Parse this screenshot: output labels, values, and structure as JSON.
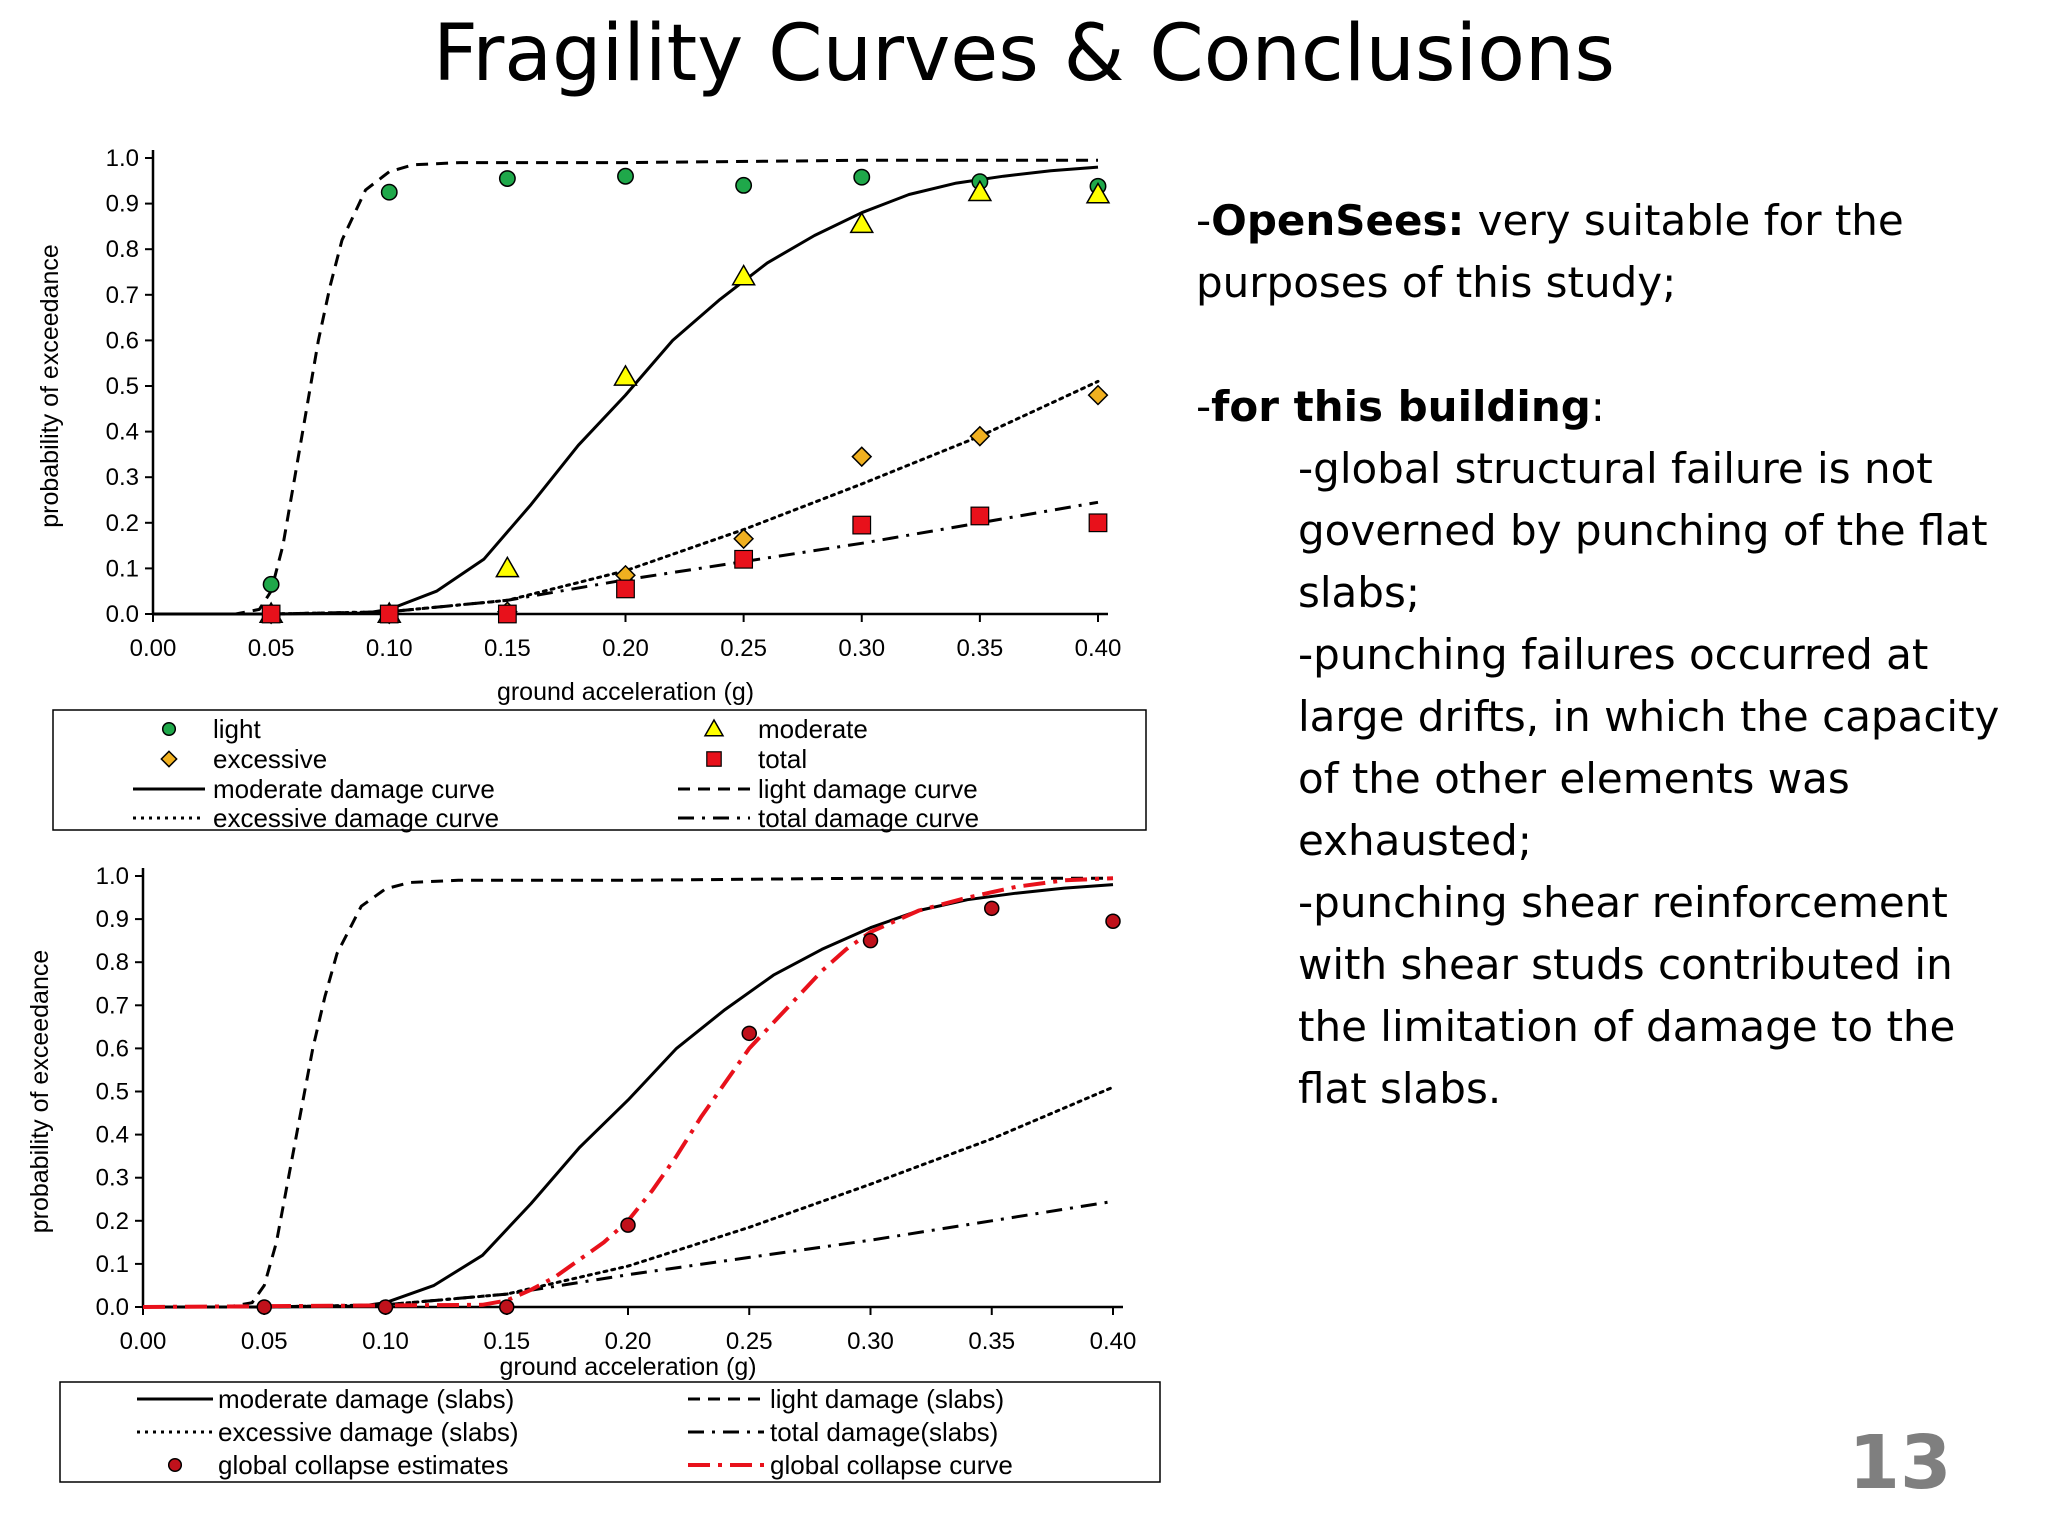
{
  "slide": {
    "title": "Fragility Curves & Conclusions",
    "page_number": "13"
  },
  "conclusions": {
    "point1_bold": "OpenSees:",
    "point1_rest": " very suitable for the purposes of this study;",
    "point2_bold": "for this building",
    "point2_rest": ":",
    "subpoints": [
      "-global structural failure is not governed by punching of the flat slabs;",
      "-punching failures occurred at large drifts, in which the capacity of the other elements was exhausted;",
      "-punching shear reinforcement with shear studs contributed in the limitation of damage to the flat slabs."
    ]
  },
  "chart_data": [
    {
      "type": "scatter",
      "xlabel": "ground acceleration (g)",
      "ylabel": "probability of exceedance",
      "xlim": [
        0,
        0.4
      ],
      "ylim": [
        0,
        1.0
      ],
      "x_ticks": [
        "0.00",
        "0.05",
        "0.10",
        "0.15",
        "0.20",
        "0.25",
        "0.30",
        "0.35",
        "0.40"
      ],
      "y_ticks": [
        "0.0",
        "0.1",
        "0.2",
        "0.3",
        "0.4",
        "0.5",
        "0.6",
        "0.7",
        "0.8",
        "0.9",
        "1.0"
      ],
      "x": [
        0.05,
        0.1,
        0.15,
        0.2,
        0.25,
        0.3,
        0.35,
        0.4
      ],
      "series": [
        {
          "name": "light",
          "marker": "circle",
          "color": "#1fa84a",
          "values": [
            0.065,
            0.925,
            0.955,
            0.96,
            0.94,
            0.958,
            0.948,
            0.938
          ]
        },
        {
          "name": "moderate",
          "marker": "triangle",
          "color": "#ffff00",
          "values": [
            0.0,
            0.0,
            0.1,
            0.52,
            0.74,
            0.855,
            0.925,
            0.92
          ]
        },
        {
          "name": "excessive",
          "marker": "diamond",
          "color": "#f0b020",
          "values": [
            0.0,
            0.0,
            0.005,
            0.085,
            0.165,
            0.345,
            0.39,
            0.48
          ]
        },
        {
          "name": "total",
          "marker": "square",
          "color": "#e8111b",
          "values": [
            0.0,
            0.0,
            0.0,
            0.055,
            0.12,
            0.195,
            0.215,
            0.2
          ]
        }
      ],
      "curves": [
        {
          "name": "moderate damage curve",
          "dash": "solid",
          "x": [
            0.0,
            0.05,
            0.09,
            0.1,
            0.12,
            0.14,
            0.16,
            0.18,
            0.2,
            0.22,
            0.24,
            0.26,
            0.28,
            0.3,
            0.32,
            0.34,
            0.36,
            0.38,
            0.4
          ],
          "y": [
            0.0,
            0.0,
            0.002,
            0.01,
            0.05,
            0.12,
            0.24,
            0.37,
            0.48,
            0.6,
            0.69,
            0.77,
            0.83,
            0.88,
            0.92,
            0.945,
            0.96,
            0.972,
            0.98
          ]
        },
        {
          "name": "light damage curve",
          "dash": "dashed",
          "x": [
            0.0,
            0.035,
            0.045,
            0.05,
            0.055,
            0.06,
            0.065,
            0.07,
            0.075,
            0.08,
            0.09,
            0.1,
            0.11,
            0.13,
            0.2,
            0.3,
            0.4
          ],
          "y": [
            0.0,
            0.0,
            0.01,
            0.05,
            0.15,
            0.3,
            0.45,
            0.6,
            0.72,
            0.82,
            0.93,
            0.97,
            0.985,
            0.99,
            0.99,
            0.995,
            0.995
          ]
        },
        {
          "name": "excessive damage curve",
          "dash": "dotted",
          "x": [
            0.0,
            0.05,
            0.1,
            0.15,
            0.2,
            0.25,
            0.3,
            0.35,
            0.4
          ],
          "y": [
            0.0,
            0.0,
            0.005,
            0.03,
            0.095,
            0.185,
            0.285,
            0.39,
            0.51
          ]
        },
        {
          "name": "total damage curve",
          "dash": "dashdot",
          "x": [
            0.0,
            0.05,
            0.1,
            0.15,
            0.2,
            0.25,
            0.3,
            0.35,
            0.4
          ],
          "y": [
            0.0,
            0.0,
            0.005,
            0.03,
            0.075,
            0.115,
            0.155,
            0.2,
            0.245
          ]
        }
      ],
      "legend": {
        "placement": "below",
        "entries": [
          "light",
          "moderate",
          "excessive",
          "total",
          "moderate damage curve",
          "light damage curve",
          "excessive damage curve",
          "total damage curve"
        ]
      }
    },
    {
      "type": "line",
      "xlabel": "ground acceleration (g)",
      "ylabel": "probability of exceedance",
      "xlim": [
        0,
        0.4
      ],
      "ylim": [
        0,
        1.0
      ],
      "x_ticks": [
        "0.00",
        "0.05",
        "0.10",
        "0.15",
        "0.20",
        "0.25",
        "0.30",
        "0.35",
        "0.40"
      ],
      "y_ticks": [
        "0.0",
        "0.1",
        "0.2",
        "0.3",
        "0.4",
        "0.5",
        "0.6",
        "0.7",
        "0.8",
        "0.9",
        "1.0"
      ],
      "curves": [
        {
          "name": "moderate damage (slabs)",
          "dash": "solid",
          "color": "#000000",
          "x": [
            0.0,
            0.05,
            0.09,
            0.1,
            0.12,
            0.14,
            0.16,
            0.18,
            0.2,
            0.22,
            0.24,
            0.26,
            0.28,
            0.3,
            0.32,
            0.34,
            0.36,
            0.38,
            0.4
          ],
          "y": [
            0.0,
            0.0,
            0.002,
            0.01,
            0.05,
            0.12,
            0.24,
            0.37,
            0.48,
            0.6,
            0.69,
            0.77,
            0.83,
            0.88,
            0.92,
            0.945,
            0.96,
            0.972,
            0.98
          ]
        },
        {
          "name": "light damage (slabs)",
          "dash": "dashed",
          "color": "#000000",
          "x": [
            0.0,
            0.035,
            0.045,
            0.05,
            0.055,
            0.06,
            0.065,
            0.07,
            0.075,
            0.08,
            0.09,
            0.1,
            0.11,
            0.13,
            0.2,
            0.3,
            0.4
          ],
          "y": [
            0.0,
            0.0,
            0.01,
            0.05,
            0.15,
            0.3,
            0.45,
            0.6,
            0.72,
            0.82,
            0.93,
            0.97,
            0.985,
            0.99,
            0.99,
            0.995,
            0.995
          ]
        },
        {
          "name": "excessive damage (slabs)",
          "dash": "dotted",
          "color": "#000000",
          "x": [
            0.0,
            0.05,
            0.1,
            0.15,
            0.2,
            0.25,
            0.3,
            0.35,
            0.4
          ],
          "y": [
            0.0,
            0.0,
            0.005,
            0.03,
            0.095,
            0.185,
            0.285,
            0.39,
            0.51
          ]
        },
        {
          "name": "total damage(slabs)",
          "dash": "dashdot",
          "color": "#000000",
          "x": [
            0.0,
            0.05,
            0.1,
            0.15,
            0.2,
            0.25,
            0.3,
            0.35,
            0.4
          ],
          "y": [
            0.0,
            0.0,
            0.005,
            0.03,
            0.075,
            0.115,
            0.155,
            0.2,
            0.245
          ]
        },
        {
          "name": "global collapse curve",
          "dash": "longdashdot",
          "color": "#e8111b",
          "x": [
            0.0,
            0.14,
            0.15,
            0.16,
            0.17,
            0.18,
            0.19,
            0.2,
            0.21,
            0.22,
            0.23,
            0.24,
            0.25,
            0.26,
            0.27,
            0.28,
            0.29,
            0.3,
            0.32,
            0.34,
            0.36,
            0.38,
            0.4
          ],
          "y": [
            0.0,
            0.005,
            0.015,
            0.04,
            0.07,
            0.11,
            0.15,
            0.2,
            0.27,
            0.35,
            0.44,
            0.52,
            0.6,
            0.66,
            0.72,
            0.78,
            0.83,
            0.87,
            0.92,
            0.95,
            0.975,
            0.99,
            0.995
          ]
        }
      ],
      "series": [
        {
          "name": "global collapse estimates",
          "marker": "circle",
          "color": "#c0111b",
          "x": [
            0.05,
            0.1,
            0.15,
            0.2,
            0.25,
            0.3,
            0.35,
            0.4
          ],
          "values": [
            0.0,
            0.0,
            0.0,
            0.19,
            0.635,
            0.85,
            0.925,
            0.895
          ]
        }
      ],
      "legend": {
        "placement": "below",
        "entries": [
          "moderate damage (slabs)",
          "light damage (slabs)",
          "excessive damage (slabs)",
          "total damage(slabs)",
          "global collapse estimates",
          "global collapse curve"
        ]
      }
    }
  ]
}
